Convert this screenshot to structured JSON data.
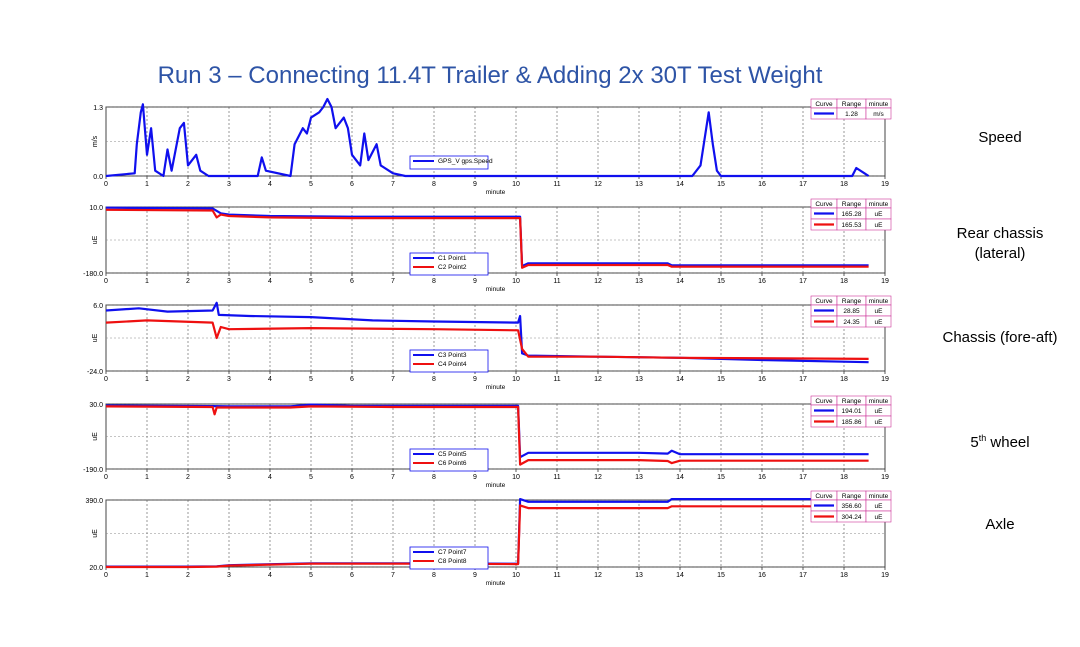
{
  "title": "Run 3 – Connecting 11.4T Trailer & Adding 2x 30T Test Weight",
  "side_labels": {
    "speed": "Speed",
    "rear_line1": "Rear chassis",
    "rear_line2": "(lateral)",
    "chassis": "Chassis (fore-aft)",
    "fifth_num": "5",
    "fifth_sup": "th",
    "fifth_rest": " wheel",
    "axle": "Axle"
  },
  "colors": {
    "series_a": "#1010ee",
    "series_b": "#ee1010",
    "title": "#2e54a6",
    "legend_border": "#cc3399"
  },
  "table_headers": [
    "Curve",
    "Range",
    "minute"
  ],
  "chart_data": [
    {
      "type": "line",
      "xlabel": "minute",
      "ylabel": "m/s",
      "xlim": [
        0,
        19
      ],
      "ylim": [
        0.0,
        1.3
      ],
      "ytick_labels": [
        "1.3",
        "0.0"
      ],
      "xticks": [
        "0",
        "1",
        "2",
        "3",
        "4",
        "5",
        "6",
        "7",
        "8",
        "9",
        "10",
        "11",
        "12",
        "13",
        "14",
        "15",
        "16",
        "17",
        "18",
        "19"
      ],
      "series": [
        {
          "name": "GPS_V gps.Speed",
          "color": "blue",
          "range": "1.28",
          "unit": "m/s",
          "points": [
            [
              0,
              0.0
            ],
            [
              0.7,
              0.05
            ],
            [
              0.75,
              0.6
            ],
            [
              0.85,
              1.2
            ],
            [
              0.9,
              1.35
            ],
            [
              1.0,
              0.4
            ],
            [
              1.1,
              0.9
            ],
            [
              1.2,
              0.1
            ],
            [
              1.4,
              0.0
            ],
            [
              1.5,
              0.5
            ],
            [
              1.6,
              0.1
            ],
            [
              1.8,
              0.9
            ],
            [
              1.9,
              1.0
            ],
            [
              2.0,
              0.2
            ],
            [
              2.2,
              0.4
            ],
            [
              2.3,
              0.1
            ],
            [
              2.5,
              0.0
            ],
            [
              3.0,
              0.0
            ],
            [
              3.7,
              0.0
            ],
            [
              3.8,
              0.35
            ],
            [
              3.9,
              0.1
            ],
            [
              4.5,
              0.0
            ],
            [
              4.6,
              0.6
            ],
            [
              4.8,
              0.9
            ],
            [
              4.9,
              0.8
            ],
            [
              5.0,
              1.1
            ],
            [
              5.2,
              1.2
            ],
            [
              5.3,
              1.3
            ],
            [
              5.4,
              1.45
            ],
            [
              5.5,
              1.3
            ],
            [
              5.6,
              0.9
            ],
            [
              5.8,
              1.1
            ],
            [
              5.9,
              0.9
            ],
            [
              6.0,
              0.4
            ],
            [
              6.2,
              0.2
            ],
            [
              6.3,
              0.8
            ],
            [
              6.4,
              0.3
            ],
            [
              6.6,
              0.6
            ],
            [
              6.7,
              0.2
            ],
            [
              7.0,
              0.05
            ],
            [
              7.3,
              0.0
            ],
            [
              10.0,
              0.0
            ],
            [
              14.3,
              0.0
            ],
            [
              14.5,
              0.2
            ],
            [
              14.7,
              1.2
            ],
            [
              14.8,
              0.6
            ],
            [
              14.9,
              0.1
            ],
            [
              15.0,
              0.0
            ],
            [
              18.2,
              0.0
            ],
            [
              18.3,
              0.15
            ],
            [
              18.5,
              0.05
            ],
            [
              18.6,
              0.0
            ]
          ]
        }
      ]
    },
    {
      "type": "line",
      "xlabel": "minute",
      "ylabel": "uE",
      "xlim": [
        0,
        19
      ],
      "ylim": [
        -180.0,
        10.0
      ],
      "ytick_labels": [
        "10.0",
        "-180.0"
      ],
      "xticks": [
        "0",
        "1",
        "2",
        "3",
        "4",
        "5",
        "6",
        "7",
        "8",
        "9",
        "10",
        "11",
        "12",
        "13",
        "14",
        "15",
        "16",
        "17",
        "18",
        "19"
      ],
      "series": [
        {
          "name": "C1 Point1",
          "color": "blue",
          "range": "165.28",
          "unit": "uE",
          "points": [
            [
              0,
              8
            ],
            [
              2.6,
              6
            ],
            [
              2.8,
              -8
            ],
            [
              3,
              -12
            ],
            [
              4,
              -16
            ],
            [
              6,
              -18
            ],
            [
              8,
              -18
            ],
            [
              10.1,
              -18
            ],
            [
              10.15,
              -160
            ],
            [
              10.3,
              -152
            ],
            [
              13.7,
              -152
            ],
            [
              13.8,
              -158
            ],
            [
              18.6,
              -158
            ]
          ]
        },
        {
          "name": "C2 Point2",
          "color": "red",
          "range": "165.53",
          "unit": "uE",
          "points": [
            [
              0,
              2
            ],
            [
              2.6,
              0
            ],
            [
              2.7,
              -20
            ],
            [
              2.8,
              -12
            ],
            [
              3,
              -16
            ],
            [
              4,
              -20
            ],
            [
              6,
              -22
            ],
            [
              8,
              -22
            ],
            [
              10.1,
              -22
            ],
            [
              10.15,
              -165
            ],
            [
              10.3,
              -157
            ],
            [
              13.7,
              -157
            ],
            [
              13.8,
              -162
            ],
            [
              18.6,
              -162
            ]
          ]
        }
      ]
    },
    {
      "type": "line",
      "xlabel": "minute",
      "ylabel": "uE",
      "xlim": [
        0,
        19
      ],
      "ylim": [
        -24.0,
        6.0
      ],
      "ytick_labels": [
        "6.0",
        "-24.0"
      ],
      "xticks": [
        "0",
        "1",
        "2",
        "3",
        "4",
        "5",
        "6",
        "7",
        "8",
        "9",
        "10",
        "11",
        "12",
        "13",
        "14",
        "15",
        "16",
        "17",
        "18",
        "19"
      ],
      "series": [
        {
          "name": "C3 Point3",
          "color": "blue",
          "range": "28.85",
          "unit": "uE",
          "points": [
            [
              0,
              3.5
            ],
            [
              0.8,
              4.5
            ],
            [
              1.5,
              3.0
            ],
            [
              2.6,
              3.5
            ],
            [
              2.7,
              7.0
            ],
            [
              2.75,
              1.5
            ],
            [
              3.5,
              1.0
            ],
            [
              5,
              0.5
            ],
            [
              6.5,
              -1.0
            ],
            [
              8,
              -1.5
            ],
            [
              10.05,
              -2.0
            ],
            [
              10.1,
              1.0
            ],
            [
              10.15,
              -16.0
            ],
            [
              10.3,
              -17.0
            ],
            [
              12,
              -17.5
            ],
            [
              14,
              -18.0
            ],
            [
              16,
              -19.0
            ],
            [
              18.6,
              -20.0
            ]
          ]
        },
        {
          "name": "C4 Point4",
          "color": "red",
          "range": "24.35",
          "unit": "uE",
          "points": [
            [
              0,
              -2.0
            ],
            [
              1,
              -1.0
            ],
            [
              2.6,
              -2.0
            ],
            [
              2.7,
              -9.0
            ],
            [
              2.8,
              -4.0
            ],
            [
              3,
              -5.0
            ],
            [
              5,
              -4.5
            ],
            [
              8,
              -5.0
            ],
            [
              10.05,
              -5.5
            ],
            [
              10.15,
              -14.0
            ],
            [
              10.3,
              -17.5
            ],
            [
              12,
              -17.5
            ],
            [
              14,
              -18.0
            ],
            [
              18.6,
              -18.5
            ]
          ]
        }
      ]
    },
    {
      "type": "line",
      "xlabel": "minute",
      "ylabel": "uE",
      "xlim": [
        0,
        19
      ],
      "ylim": [
        -190.0,
        30.0
      ],
      "ytick_labels": [
        "30.0",
        "-190.0"
      ],
      "xticks": [
        "0",
        "1",
        "2",
        "3",
        "4",
        "5",
        "6",
        "7",
        "8",
        "9",
        "10",
        "11",
        "12",
        "13",
        "14",
        "15",
        "16",
        "17",
        "18",
        "19"
      ],
      "series": [
        {
          "name": "C5 Point5",
          "color": "blue",
          "range": "194.01",
          "unit": "uE",
          "points": [
            [
              0,
              25
            ],
            [
              2.6,
              23
            ],
            [
              3,
              22
            ],
            [
              4.5,
              22
            ],
            [
              5,
              28
            ],
            [
              6,
              24
            ],
            [
              7,
              24
            ],
            [
              10.05,
              24
            ],
            [
              10.1,
              -150
            ],
            [
              10.3,
              -135
            ],
            [
              13,
              -135
            ],
            [
              13.7,
              -138
            ],
            [
              13.8,
              -128
            ],
            [
              14,
              -140
            ],
            [
              18.6,
              -140
            ]
          ]
        },
        {
          "name": "C6 Point6",
          "color": "red",
          "range": "185.86",
          "unit": "uE",
          "points": [
            [
              0,
              22
            ],
            [
              2.6,
              20
            ],
            [
              2.65,
              -5
            ],
            [
              2.7,
              18
            ],
            [
              4.5,
              18
            ],
            [
              5,
              22
            ],
            [
              7,
              20
            ],
            [
              10.05,
              20
            ],
            [
              10.1,
              -175
            ],
            [
              10.3,
              -160
            ],
            [
              13,
              -160
            ],
            [
              13.7,
              -163
            ],
            [
              13.8,
              -170
            ],
            [
              14,
              -162
            ],
            [
              18.6,
              -162
            ]
          ]
        }
      ]
    },
    {
      "type": "line",
      "xlabel": "minute",
      "ylabel": "uE",
      "xlim": [
        0,
        19
      ],
      "ylim": [
        20.0,
        390.0
      ],
      "ytick_labels": [
        "390.0",
        "20.0"
      ],
      "xticks": [
        "0",
        "1",
        "2",
        "3",
        "4",
        "5",
        "6",
        "7",
        "8",
        "9",
        "10",
        "11",
        "12",
        "13",
        "14",
        "15",
        "16",
        "17",
        "18",
        "19"
      ],
      "series": [
        {
          "name": "C7 Point7",
          "color": "blue",
          "range": "356.60",
          "unit": "uE",
          "points": [
            [
              0,
              22
            ],
            [
              2,
              22
            ],
            [
              2.7,
              24
            ],
            [
              3,
              30
            ],
            [
              5,
              40
            ],
            [
              8,
              40
            ],
            [
              10.05,
              38
            ],
            [
              10.1,
              395
            ],
            [
              10.3,
              380
            ],
            [
              13.7,
              380
            ],
            [
              13.8,
              395
            ],
            [
              18.6,
              395
            ]
          ]
        },
        {
          "name": "C8 Point8",
          "color": "red",
          "range": "304.24",
          "unit": "uE",
          "points": [
            [
              0,
              20
            ],
            [
              2,
              20
            ],
            [
              2.7,
              22
            ],
            [
              3,
              28
            ],
            [
              5,
              38
            ],
            [
              8,
              38
            ],
            [
              10.05,
              36
            ],
            [
              10.1,
              360
            ],
            [
              10.3,
              345
            ],
            [
              13.7,
              345
            ],
            [
              13.8,
              355
            ],
            [
              18.6,
              355
            ]
          ]
        }
      ]
    }
  ]
}
